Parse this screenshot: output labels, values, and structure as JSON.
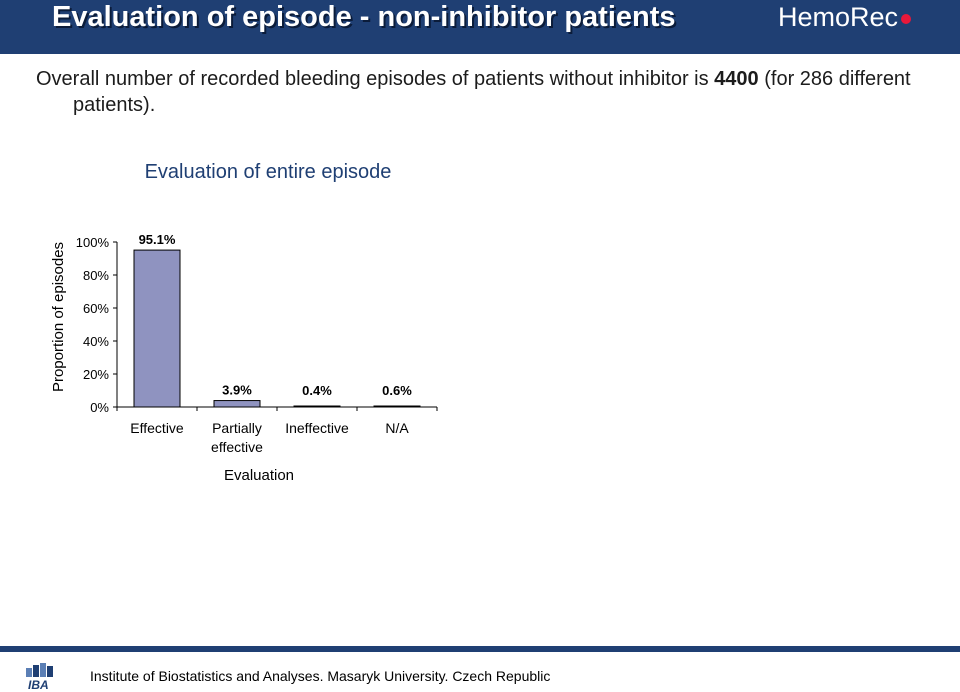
{
  "slide": {
    "title": "Evaluation of episode - non-inhibitor patients",
    "brand": "HemoRec",
    "intro_pre": "Overall number of recorded bleeding episodes of patients without inhibitor is ",
    "intro_bold": "4400",
    "intro_post": " (for 286 different patients).",
    "footer_text": "Institute of Biostatistics and Analyses. Masaryk University. Czech Republic",
    "footer_logo_text": "IBA",
    "colors": {
      "header": "#1f3f73",
      "bar": "#8f93c0",
      "brand_dot": "#e8183a"
    }
  },
  "chart_data": {
    "type": "bar",
    "title": "Evaluation of entire episode",
    "xlabel": "Evaluation",
    "ylabel": "Proportion of episodes",
    "categories": [
      "Effective",
      "Partially effective",
      "Ineffective",
      "N/A"
    ],
    "category_lines": [
      [
        "Effective"
      ],
      [
        "Partially",
        "effective"
      ],
      [
        "Ineffective"
      ],
      [
        "N/A"
      ]
    ],
    "values": [
      95.1,
      3.9,
      0.4,
      0.6
    ],
    "value_labels": [
      "95.1%",
      "3.9%",
      "0.4%",
      "0.6%"
    ],
    "yticks": [
      0,
      20,
      40,
      60,
      80,
      100
    ],
    "ytick_labels": [
      "0%",
      "20%",
      "40%",
      "60%",
      "80%",
      "100%"
    ],
    "ylim": [
      0,
      100
    ],
    "grid": false,
    "legend": false
  }
}
